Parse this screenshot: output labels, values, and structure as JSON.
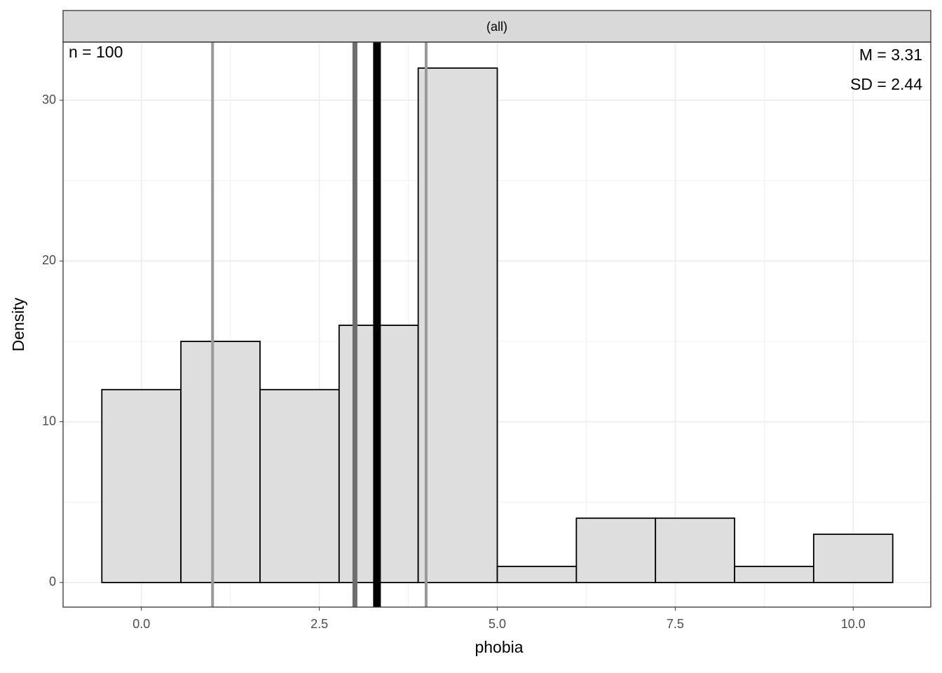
{
  "chart_data": {
    "type": "histogram",
    "strip": "(all)",
    "xlabel": "phobia",
    "ylabel": "Density",
    "bins": [
      -0.5556,
      0.5556,
      1.6667,
      2.7778,
      3.8889,
      5,
      6.1111,
      7.2222,
      8.3333,
      9.4444,
      10.5556
    ],
    "values": [
      12,
      15,
      12,
      16,
      32,
      1,
      4,
      4,
      1,
      3
    ],
    "color": "#dedede",
    "xlim": [
      -1.1,
      11.09
    ],
    "ylim": [
      -1.53,
      33.62
    ],
    "xticks": [
      {
        "value": 0,
        "label": "0.0"
      },
      {
        "value": 2.5,
        "label": "2.5"
      },
      {
        "value": 5,
        "label": "5.0"
      },
      {
        "value": 7.5,
        "label": "7.5"
      },
      {
        "value": 10,
        "label": "10.0"
      }
    ],
    "yticks": [
      0,
      10,
      20,
      30
    ],
    "grid": true,
    "vlines": [
      {
        "value": 1,
        "color": "#999999"
      },
      {
        "value": 3,
        "color": "#6e6e6e"
      },
      {
        "value": 3.31,
        "color": "#000000"
      },
      {
        "value": 4,
        "color": "#999999"
      }
    ],
    "annotations": [
      "n = 100",
      "M = 3.31",
      "SD = 2.44"
    ]
  }
}
